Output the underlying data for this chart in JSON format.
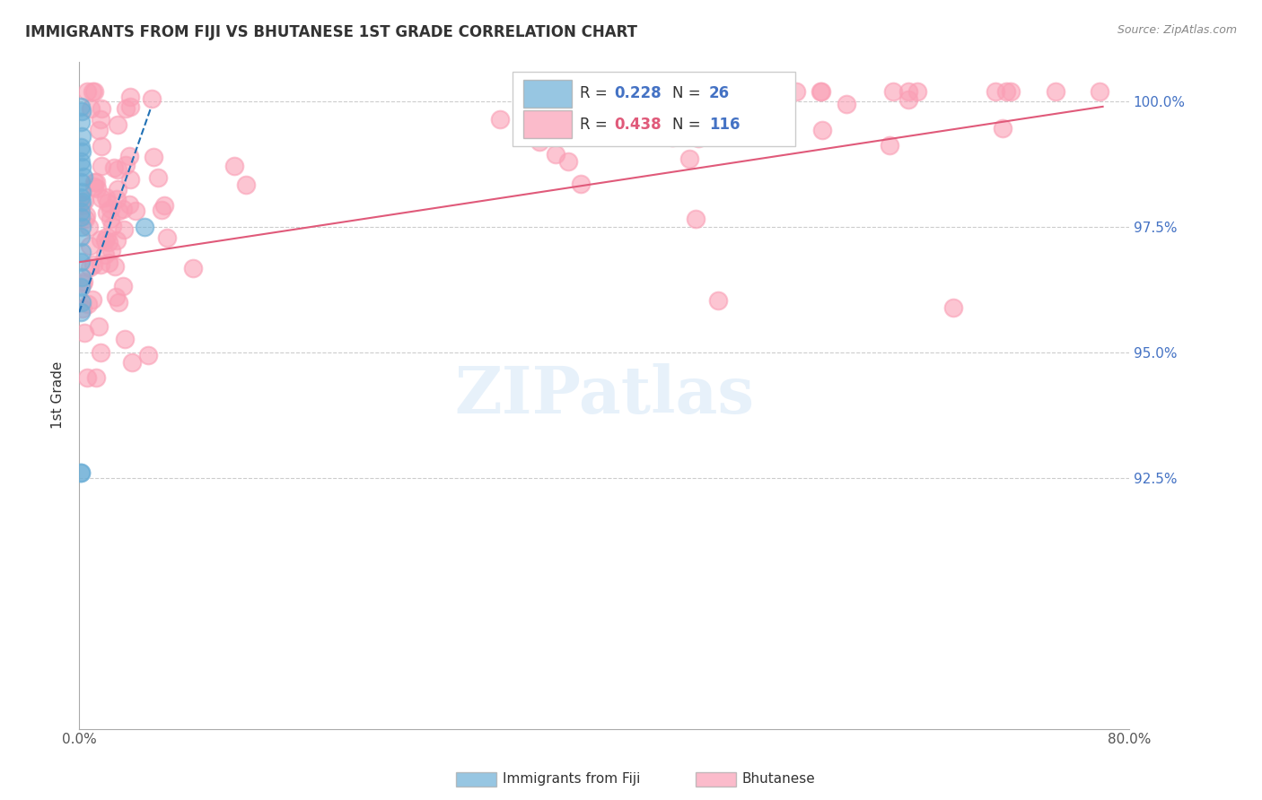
{
  "title": "IMMIGRANTS FROM FIJI VS BHUTANESE 1ST GRADE CORRELATION CHART",
  "source": "Source: ZipAtlas.com",
  "ylabel": "1st Grade",
  "xmin": 0.0,
  "xmax": 0.8,
  "ymin": 0.875,
  "ymax": 1.008,
  "legend_fiji_R": "0.228",
  "legend_fiji_N": "26",
  "legend_bhutan_R": "0.438",
  "legend_bhutan_N": "116",
  "fiji_color": "#6baed6",
  "bhutan_color": "#fa9fb5",
  "fiji_line_color": "#2171b5",
  "bhutan_line_color": "#e05a7a",
  "watermark": "ZIPatlas",
  "ytick_vals": [
    1.0,
    0.975,
    0.95,
    0.925
  ],
  "ytick_labels": [
    "100.0%",
    "97.5%",
    "95.0%",
    "92.5%"
  ]
}
